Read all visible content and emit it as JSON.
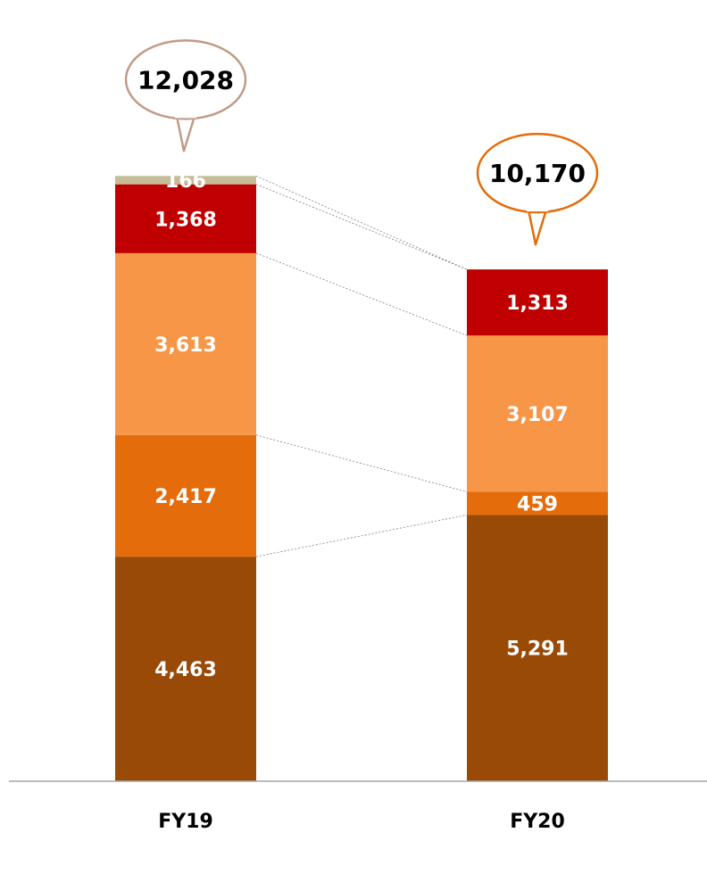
{
  "chart_data": {
    "type": "bar",
    "stacked": true,
    "categories": [
      "FY19",
      "FY20"
    ],
    "series": [
      {
        "values": [
          4463,
          5291
        ],
        "color": "#994a07"
      },
      {
        "values": [
          2417,
          459
        ],
        "color": "#e46c0a"
      },
      {
        "values": [
          3613,
          3107
        ],
        "color": "#f79646"
      },
      {
        "values": [
          1368,
          1313
        ],
        "color": "#c00000"
      },
      {
        "values": [
          166,
          0
        ],
        "color": "#c4bd97"
      }
    ],
    "segment_labels": [
      [
        "4,463",
        "2,417",
        "3,613",
        "1,368",
        "166"
      ],
      [
        "5,291",
        "459",
        "3,107",
        "1,313",
        ""
      ]
    ],
    "totals": [
      12028,
      10170
    ],
    "total_labels": [
      "12,028",
      "10,170"
    ],
    "total_bubble_colors": [
      "#c09a88",
      "#e46c0a"
    ],
    "ylim": [
      0,
      12100
    ],
    "grid": false,
    "legend": "none"
  }
}
